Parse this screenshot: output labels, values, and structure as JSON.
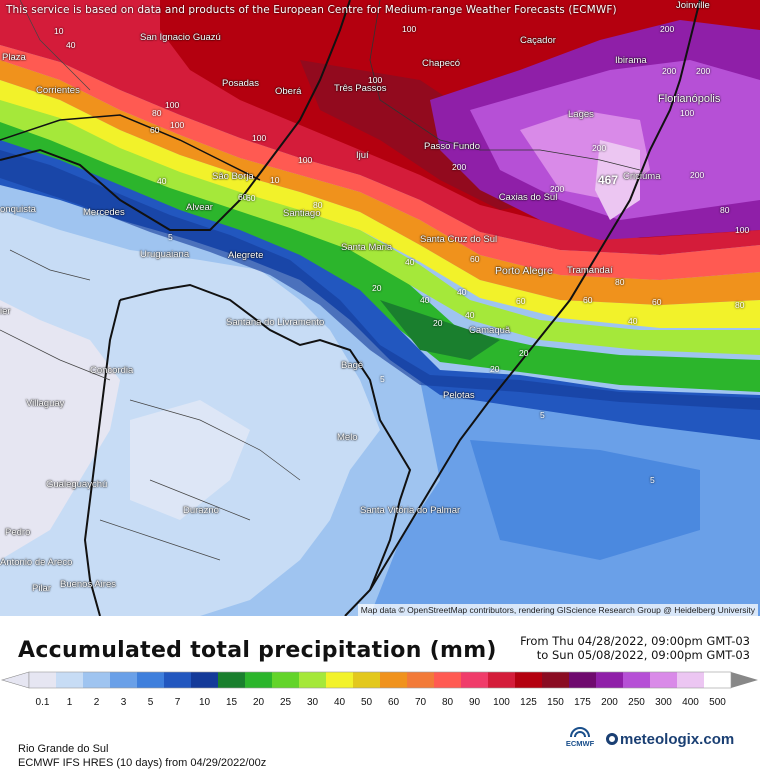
{
  "notice": "This service is based on data and products of the European Centre for Medium-range Weather Forecasts (ECMWF)",
  "attribution": "Map data © OpenStreetMap contributors, rendering GIScience Research Group @ Heidelberg University",
  "cities": [
    {
      "name": "Joinville"
    },
    {
      "name": "San Ignacio Guazú"
    },
    {
      "name": "Caçador"
    },
    {
      "name": "Ibirama"
    },
    {
      "name": "Florianópolis"
    },
    {
      "name": "Plaza"
    },
    {
      "name": "Posadas"
    },
    {
      "name": "Oberá"
    },
    {
      "name": "Chapecó"
    },
    {
      "name": "Três Passos"
    },
    {
      "name": "Corrientes"
    },
    {
      "name": "Lages"
    },
    {
      "name": "Passo Fundo"
    },
    {
      "name": "Ijuí"
    },
    {
      "name": "Criciúma"
    },
    {
      "name": "São Borja"
    },
    {
      "name": "Caxias do Sul"
    },
    {
      "name": "Mercedes"
    },
    {
      "name": "Alvear"
    },
    {
      "name": "Santiago"
    },
    {
      "name": "onquista"
    },
    {
      "name": "Santa Maria"
    },
    {
      "name": "Santa Cruz do Sul"
    },
    {
      "name": "Uruguaiana"
    },
    {
      "name": "Alegrete"
    },
    {
      "name": "Porto Alegre"
    },
    {
      "name": "Tramandaí"
    },
    {
      "name": "Santana do Livramento"
    },
    {
      "name": "Camaquã"
    },
    {
      "name": "Concordia"
    },
    {
      "name": "Bagé"
    },
    {
      "name": "Pelotas"
    },
    {
      "name": "Villaguay"
    },
    {
      "name": "Melo"
    },
    {
      "name": "Gualeguaychú"
    },
    {
      "name": "Durazno"
    },
    {
      "name": "Santa Vitória do Palmar"
    },
    {
      "name": "Pedro"
    },
    {
      "name": "Antonio de Areco"
    },
    {
      "name": "Pilar"
    },
    {
      "name": "Buenos Aires"
    },
    {
      "name": "ier"
    }
  ],
  "contour_values": [
    "40",
    "100",
    "100",
    "100",
    "200",
    "200",
    "100",
    "80",
    "60",
    "100",
    "60",
    "100",
    "80",
    "40",
    "100",
    "200",
    "200",
    "200",
    "200",
    "40",
    "40",
    "60",
    "60",
    "20",
    "40",
    "60",
    "80",
    "60",
    "40",
    "60",
    "20",
    "20",
    "20",
    "40",
    "5",
    "5",
    "5",
    "5",
    "10",
    "10",
    "100",
    "200",
    "80",
    "80"
  ],
  "max_marker": "467",
  "title": "Accumulated total precipitation (mm)",
  "period_from": "From Thu 04/28/2022, 09:00pm GMT-03",
  "period_to": "to Sun 05/08/2022, 09:00pm GMT-03",
  "legend": {
    "ticks": [
      "0.1",
      "1",
      "2",
      "3",
      "5",
      "7",
      "10",
      "15",
      "20",
      "25",
      "30",
      "40",
      "50",
      "60",
      "70",
      "80",
      "90",
      "100",
      "125",
      "150",
      "175",
      "200",
      "250",
      "300",
      "400",
      "500"
    ],
    "colors": [
      "#e6e6f2",
      "#c7dcf5",
      "#9fc4f0",
      "#6aa0e8",
      "#3f7fdc",
      "#2257bf",
      "#143a99",
      "#1a7f2e",
      "#2cb52c",
      "#63d42a",
      "#a5e83a",
      "#f2f22a",
      "#e3c81c",
      "#f0921c",
      "#f27a38",
      "#ff5a52",
      "#f03c6a",
      "#d41c3a",
      "#b4000f",
      "#8a0c22",
      "#6f0a6e",
      "#8f1fa8",
      "#b650d6",
      "#d98ae8",
      "#ecc6f2",
      "#ffffff"
    ]
  },
  "region": "Rio Grande do Sul",
  "model": "ECMWF IFS HRES (10 days) from 04/29/2022/00z",
  "ecmwf_logo": "ECMWF",
  "brand": "meteologix.com"
}
